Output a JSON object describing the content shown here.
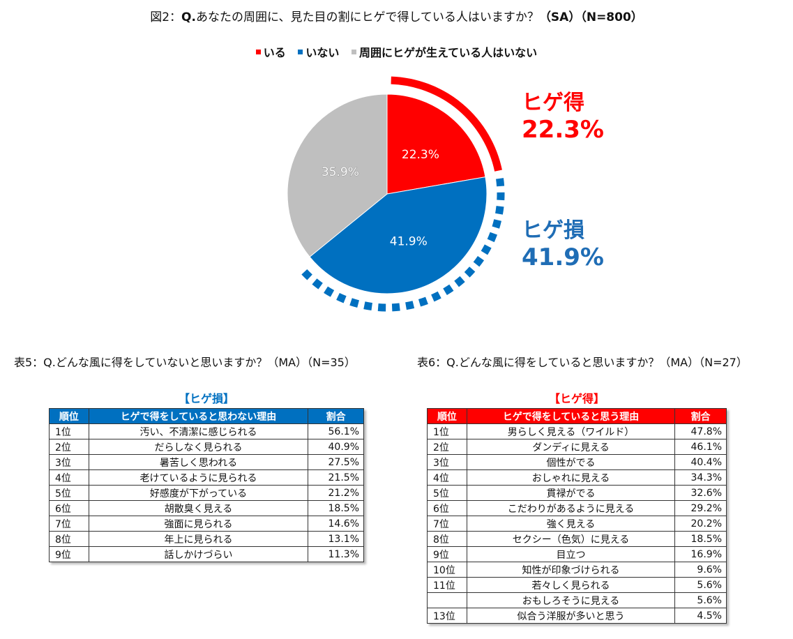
{
  "figure": {
    "title_prefix": "図2：",
    "title_q": "Q.",
    "title_text": "あなたの周囲に、見た目の割にヒゲで得している人はいますか？",
    "title_suffix": "（SA）（N=800）"
  },
  "legend": [
    {
      "label": "いる",
      "color": "#ff0000"
    },
    {
      "label": "いない",
      "color": "#0070c0"
    },
    {
      "label": "周囲にヒゲが生えている人はいない",
      "color": "#bfbfbf"
    }
  ],
  "chart_data": {
    "type": "pie",
    "title": "図2：Q.あなたの周囲に、見た目の割にヒゲで得している人はいますか？（SA）（N=800）",
    "series": [
      {
        "name": "いる",
        "value": 22.3,
        "label": "22.3%",
        "color": "#ff0000"
      },
      {
        "name": "いない",
        "value": 41.9,
        "label": "41.9%",
        "color": "#0070c0"
      },
      {
        "name": "周囲にヒゲが生えている人はいない",
        "value": 35.9,
        "label": "35.9%",
        "color": "#bfbfbf"
      }
    ],
    "legend_position": "top",
    "annotations": [
      {
        "label": "ヒゲ得",
        "value": "22.3%",
        "color": "#ff0000"
      },
      {
        "label": "ヒゲ損",
        "value": "41.9%",
        "color": "#1f6db5"
      }
    ]
  },
  "table5": {
    "title": "表5：Q.どんな風に得をしていないと思いますか？（MA）（N=35）",
    "label": "【ヒゲ損】",
    "headers": [
      "順位",
      "ヒゲで得をしていると思わない理由",
      "割合"
    ],
    "rows": [
      [
        "1位",
        "汚い、不清潔に感じられる",
        "56.1%"
      ],
      [
        "2位",
        "だらしなく見られる",
        "40.9%"
      ],
      [
        "3位",
        "暑苦しく思われる",
        "27.5%"
      ],
      [
        "4位",
        "老けているように見られる",
        "21.5%"
      ],
      [
        "5位",
        "好感度が下がっている",
        "21.2%"
      ],
      [
        "6位",
        "胡散臭く見える",
        "18.5%"
      ],
      [
        "7位",
        "強面に見られる",
        "14.6%"
      ],
      [
        "8位",
        "年上に見られる",
        "13.1%"
      ],
      [
        "9位",
        "話しかけづらい",
        "11.3%"
      ]
    ]
  },
  "table6": {
    "title": "表6：Q.どんな風に得をしていると思いますか？（MA）（N=27）",
    "label": "【ヒゲ得】",
    "headers": [
      "順位",
      "ヒゲで得をしていると思う理由",
      "割合"
    ],
    "rows": [
      [
        "1位",
        "男らしく見える（ワイルド）",
        "47.8%"
      ],
      [
        "2位",
        "ダンディに見える",
        "46.1%"
      ],
      [
        "3位",
        "個性がでる",
        "40.4%"
      ],
      [
        "4位",
        "おしゃれに見える",
        "34.3%"
      ],
      [
        "5位",
        "貫禄がでる",
        "32.6%"
      ],
      [
        "6位",
        "こだわりがあるように見える",
        "29.2%"
      ],
      [
        "7位",
        "強く見える",
        "20.2%"
      ],
      [
        "8位",
        "セクシー（色気）に見える",
        "18.5%"
      ],
      [
        "9位",
        "目立つ",
        "16.9%"
      ],
      [
        "10位",
        "知性が印象づけられる",
        "9.6%"
      ],
      [
        "11位",
        "若々しく見られる",
        "5.6%"
      ],
      [
        "",
        "おもしろそうに見える",
        "5.6%"
      ],
      [
        "13位",
        "似合う洋服が多いと思う",
        "4.5%"
      ]
    ]
  }
}
